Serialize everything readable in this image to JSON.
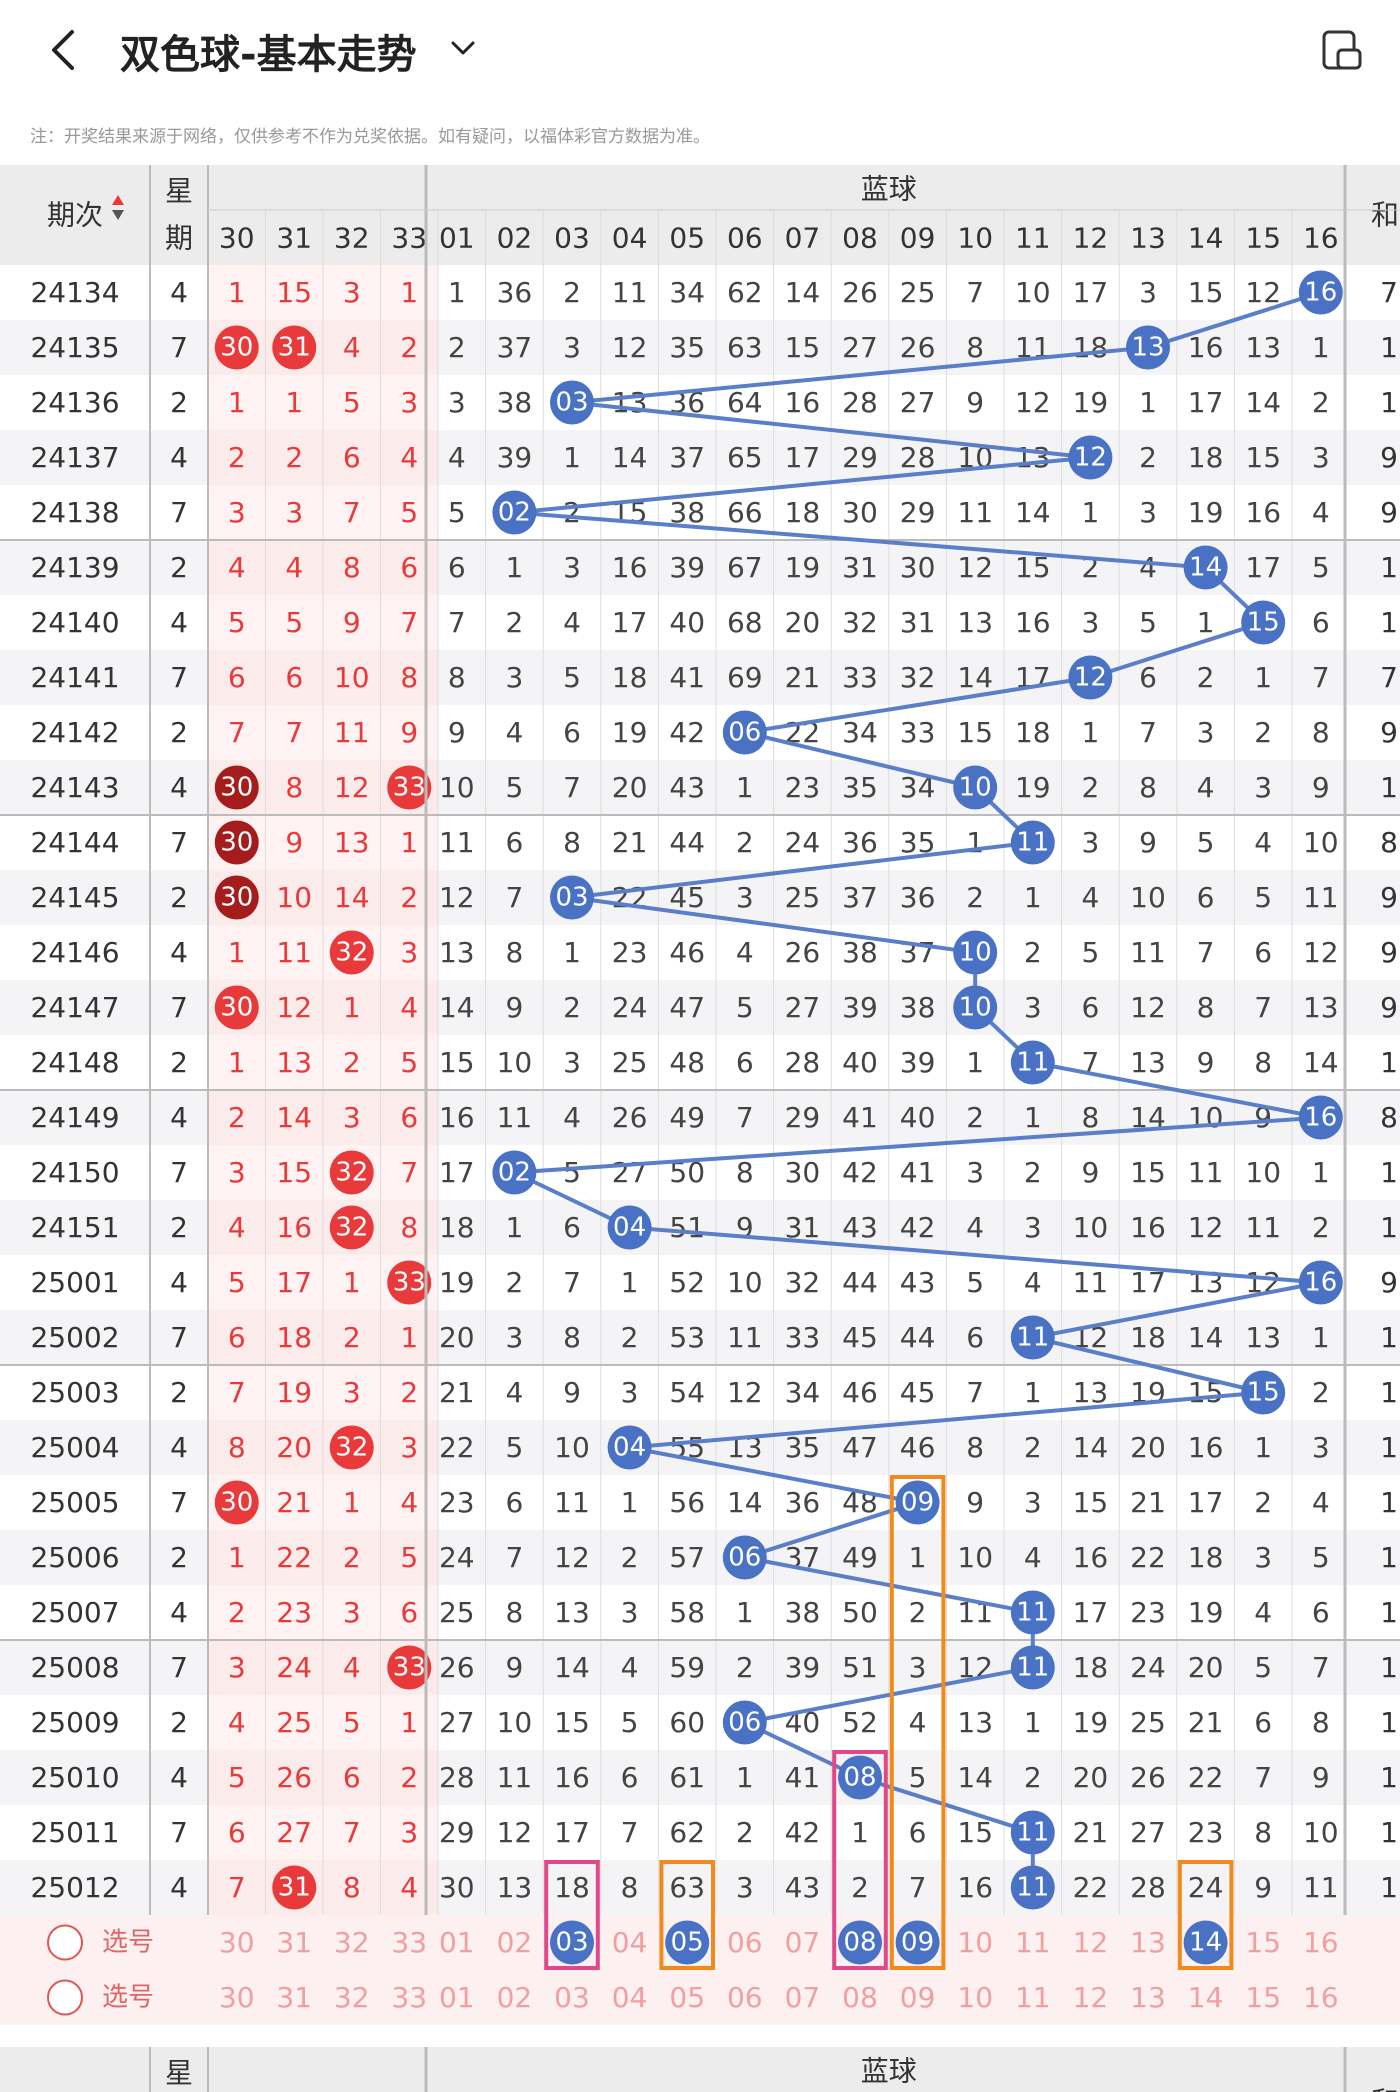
{
  "header": {
    "title": "双色球-基本走势",
    "back_icon": "back-chevron-icon",
    "dropdown_icon": "chevron-down-icon",
    "right_icon": "screen-rotate-icon"
  },
  "note": "注：开奖结果来源于网络，仅供参考不作为兑奖依据。如有疑问，以福体彩官方数据为准。",
  "table": {
    "col_period": "期次",
    "col_week_top": "星",
    "col_week_bottom": "期",
    "blue_group_label": "蓝球",
    "sum_label": "和",
    "red_cols": [
      "30",
      "31",
      "32",
      "33"
    ],
    "blue_cols": [
      "01",
      "02",
      "03",
      "04",
      "05",
      "06",
      "07",
      "08",
      "09",
      "10",
      "11",
      "12",
      "13",
      "14",
      "15",
      "16"
    ],
    "select_label": "选号",
    "footer_dash": "-",
    "rows": [
      {
        "p": "24134",
        "w": "4",
        "r": [
          "1",
          "15",
          "3",
          "1"
        ],
        "b": [
          "1",
          "36",
          "2",
          "11",
          "34",
          "62",
          "14",
          "26",
          "25",
          "7",
          "10",
          "17",
          "3",
          "15",
          "12",
          "16"
        ],
        "hit": 16,
        "rh": []
      },
      {
        "p": "24135",
        "w": "7",
        "r": [
          "30",
          "31",
          "4",
          "2"
        ],
        "b": [
          "2",
          "37",
          "3",
          "12",
          "35",
          "63",
          "15",
          "27",
          "26",
          "8",
          "11",
          "18",
          "13",
          "16",
          "13",
          "1"
        ],
        "hit": 13,
        "rh": [
          0,
          1
        ]
      },
      {
        "p": "24136",
        "w": "2",
        "r": [
          "1",
          "1",
          "5",
          "3"
        ],
        "b": [
          "3",
          "38",
          "03",
          "13",
          "36",
          "64",
          "16",
          "28",
          "27",
          "9",
          "12",
          "19",
          "1",
          "17",
          "14",
          "2"
        ],
        "hit": 3,
        "rh": []
      },
      {
        "p": "24137",
        "w": "4",
        "r": [
          "2",
          "2",
          "6",
          "4"
        ],
        "b": [
          "4",
          "39",
          "1",
          "14",
          "37",
          "65",
          "17",
          "29",
          "28",
          "10",
          "13",
          "12",
          "2",
          "18",
          "15",
          "3"
        ],
        "hit": 12,
        "rh": []
      },
      {
        "p": "24138",
        "w": "7",
        "r": [
          "3",
          "3",
          "7",
          "5"
        ],
        "b": [
          "5",
          "02",
          "2",
          "15",
          "38",
          "66",
          "18",
          "30",
          "29",
          "11",
          "14",
          "1",
          "3",
          "19",
          "16",
          "4"
        ],
        "hit": 2,
        "rh": []
      },
      {
        "p": "24139",
        "w": "2",
        "r": [
          "4",
          "4",
          "8",
          "6"
        ],
        "b": [
          "6",
          "1",
          "3",
          "16",
          "39",
          "67",
          "19",
          "31",
          "30",
          "12",
          "15",
          "2",
          "4",
          "14",
          "17",
          "5"
        ],
        "hit": 14,
        "rh": []
      },
      {
        "p": "24140",
        "w": "4",
        "r": [
          "5",
          "5",
          "9",
          "7"
        ],
        "b": [
          "7",
          "2",
          "4",
          "17",
          "40",
          "68",
          "20",
          "32",
          "31",
          "13",
          "16",
          "3",
          "5",
          "1",
          "15",
          "6"
        ],
        "hit": 15,
        "rh": []
      },
      {
        "p": "24141",
        "w": "7",
        "r": [
          "6",
          "6",
          "10",
          "8"
        ],
        "b": [
          "8",
          "3",
          "5",
          "18",
          "41",
          "69",
          "21",
          "33",
          "32",
          "14",
          "17",
          "12",
          "6",
          "2",
          "1",
          "7"
        ],
        "hit": 12,
        "rh": []
      },
      {
        "p": "24142",
        "w": "2",
        "r": [
          "7",
          "7",
          "11",
          "9"
        ],
        "b": [
          "9",
          "4",
          "6",
          "19",
          "42",
          "06",
          "22",
          "34",
          "33",
          "15",
          "18",
          "1",
          "7",
          "3",
          "2",
          "8"
        ],
        "hit": 6,
        "rh": []
      },
      {
        "p": "24143",
        "w": "4",
        "r": [
          "30",
          "8",
          "12",
          "33"
        ],
        "b": [
          "10",
          "5",
          "7",
          "20",
          "43",
          "1",
          "23",
          "35",
          "34",
          "10",
          "19",
          "2",
          "8",
          "4",
          "3",
          "9"
        ],
        "hit": 10,
        "rh": [
          0,
          3
        ],
        "dark": [
          0
        ]
      },
      {
        "p": "24144",
        "w": "7",
        "r": [
          "30",
          "9",
          "13",
          "1"
        ],
        "b": [
          "11",
          "6",
          "8",
          "21",
          "44",
          "2",
          "24",
          "36",
          "35",
          "1",
          "11",
          "3",
          "9",
          "5",
          "4",
          "10"
        ],
        "hit": 11,
        "rh": [
          0
        ],
        "dark": [
          0
        ]
      },
      {
        "p": "24145",
        "w": "2",
        "r": [
          "30",
          "10",
          "14",
          "2"
        ],
        "b": [
          "12",
          "7",
          "03",
          "22",
          "45",
          "3",
          "25",
          "37",
          "36",
          "2",
          "1",
          "4",
          "10",
          "6",
          "5",
          "11"
        ],
        "hit": 3,
        "rh": [
          0
        ],
        "dark": [
          0
        ]
      },
      {
        "p": "24146",
        "w": "4",
        "r": [
          "1",
          "11",
          "32",
          "3"
        ],
        "b": [
          "13",
          "8",
          "1",
          "23",
          "46",
          "4",
          "26",
          "38",
          "37",
          "10",
          "2",
          "5",
          "11",
          "7",
          "6",
          "12"
        ],
        "hit": 10,
        "rh": [
          2
        ]
      },
      {
        "p": "24147",
        "w": "7",
        "r": [
          "30",
          "12",
          "1",
          "4"
        ],
        "b": [
          "14",
          "9",
          "2",
          "24",
          "47",
          "5",
          "27",
          "39",
          "38",
          "10",
          "3",
          "6",
          "12",
          "8",
          "7",
          "13"
        ],
        "hit": 10,
        "rh": [
          0
        ]
      },
      {
        "p": "24148",
        "w": "2",
        "r": [
          "1",
          "13",
          "2",
          "5"
        ],
        "b": [
          "15",
          "10",
          "3",
          "25",
          "48",
          "6",
          "28",
          "40",
          "39",
          "1",
          "11",
          "7",
          "13",
          "9",
          "8",
          "14"
        ],
        "hit": 11,
        "rh": []
      },
      {
        "p": "24149",
        "w": "4",
        "r": [
          "2",
          "14",
          "3",
          "6"
        ],
        "b": [
          "16",
          "11",
          "4",
          "26",
          "49",
          "7",
          "29",
          "41",
          "40",
          "2",
          "1",
          "8",
          "14",
          "10",
          "9",
          "16"
        ],
        "hit": 16,
        "rh": []
      },
      {
        "p": "24150",
        "w": "7",
        "r": [
          "3",
          "15",
          "32",
          "7"
        ],
        "b": [
          "17",
          "02",
          "5",
          "27",
          "50",
          "8",
          "30",
          "42",
          "41",
          "3",
          "2",
          "9",
          "15",
          "11",
          "10",
          "1"
        ],
        "hit": 2,
        "rh": [
          2
        ]
      },
      {
        "p": "24151",
        "w": "2",
        "r": [
          "4",
          "16",
          "32",
          "8"
        ],
        "b": [
          "18",
          "1",
          "6",
          "04",
          "51",
          "9",
          "31",
          "43",
          "42",
          "4",
          "3",
          "10",
          "16",
          "12",
          "11",
          "2"
        ],
        "hit": 4,
        "rh": [
          2
        ]
      },
      {
        "p": "25001",
        "w": "4",
        "r": [
          "5",
          "17",
          "1",
          "33"
        ],
        "b": [
          "19",
          "2",
          "7",
          "1",
          "52",
          "10",
          "32",
          "44",
          "43",
          "5",
          "4",
          "11",
          "17",
          "13",
          "12",
          "16"
        ],
        "hit": 16,
        "rh": [
          3
        ]
      },
      {
        "p": "25002",
        "w": "7",
        "r": [
          "6",
          "18",
          "2",
          "1"
        ],
        "b": [
          "20",
          "3",
          "8",
          "2",
          "53",
          "11",
          "33",
          "45",
          "44",
          "6",
          "11",
          "12",
          "18",
          "14",
          "13",
          "1"
        ],
        "hit": 11,
        "rh": []
      },
      {
        "p": "25003",
        "w": "2",
        "r": [
          "7",
          "19",
          "3",
          "2"
        ],
        "b": [
          "21",
          "4",
          "9",
          "3",
          "54",
          "12",
          "34",
          "46",
          "45",
          "7",
          "1",
          "13",
          "19",
          "15",
          "15",
          "2"
        ],
        "hit": 15,
        "rh": []
      },
      {
        "p": "25004",
        "w": "4",
        "r": [
          "8",
          "20",
          "32",
          "3"
        ],
        "b": [
          "22",
          "5",
          "10",
          "04",
          "55",
          "13",
          "35",
          "47",
          "46",
          "8",
          "2",
          "14",
          "20",
          "16",
          "1",
          "3"
        ],
        "hit": 4,
        "rh": [
          2
        ]
      },
      {
        "p": "25005",
        "w": "7",
        "r": [
          "30",
          "21",
          "1",
          "4"
        ],
        "b": [
          "23",
          "6",
          "11",
          "1",
          "56",
          "14",
          "36",
          "48",
          "09",
          "9",
          "3",
          "15",
          "21",
          "17",
          "2",
          "4"
        ],
        "hit": 9,
        "rh": [
          0
        ]
      },
      {
        "p": "25006",
        "w": "2",
        "r": [
          "1",
          "22",
          "2",
          "5"
        ],
        "b": [
          "24",
          "7",
          "12",
          "2",
          "57",
          "06",
          "37",
          "49",
          "1",
          "10",
          "4",
          "16",
          "22",
          "18",
          "3",
          "5"
        ],
        "hit": 6,
        "rh": []
      },
      {
        "p": "25007",
        "w": "4",
        "r": [
          "2",
          "23",
          "3",
          "6"
        ],
        "b": [
          "25",
          "8",
          "13",
          "3",
          "58",
          "1",
          "38",
          "50",
          "2",
          "11",
          "11",
          "17",
          "23",
          "19",
          "4",
          "6"
        ],
        "hit": 11,
        "rh": []
      },
      {
        "p": "25008",
        "w": "7",
        "r": [
          "3",
          "24",
          "4",
          "33"
        ],
        "b": [
          "26",
          "9",
          "14",
          "4",
          "59",
          "2",
          "39",
          "51",
          "3",
          "12",
          "11",
          "18",
          "24",
          "20",
          "5",
          "7"
        ],
        "hit": 11,
        "rh": [
          3
        ]
      },
      {
        "p": "25009",
        "w": "2",
        "r": [
          "4",
          "25",
          "5",
          "1"
        ],
        "b": [
          "27",
          "10",
          "15",
          "5",
          "60",
          "06",
          "40",
          "52",
          "4",
          "13",
          "1",
          "19",
          "25",
          "21",
          "6",
          "8"
        ],
        "hit": 6,
        "rh": []
      },
      {
        "p": "25010",
        "w": "4",
        "r": [
          "5",
          "26",
          "6",
          "2"
        ],
        "b": [
          "28",
          "11",
          "16",
          "6",
          "61",
          "1",
          "41",
          "08",
          "5",
          "14",
          "2",
          "20",
          "26",
          "22",
          "7",
          "9"
        ],
        "hit": 8,
        "rh": []
      },
      {
        "p": "25011",
        "w": "7",
        "r": [
          "6",
          "27",
          "7",
          "3"
        ],
        "b": [
          "29",
          "12",
          "17",
          "7",
          "62",
          "2",
          "42",
          "1",
          "6",
          "15",
          "11",
          "21",
          "27",
          "23",
          "8",
          "10"
        ],
        "hit": 11,
        "rh": []
      },
      {
        "p": "25012",
        "w": "4",
        "r": [
          "7",
          "31",
          "8",
          "4"
        ],
        "b": [
          "30",
          "13",
          "18",
          "8",
          "63",
          "3",
          "43",
          "2",
          "7",
          "16",
          "11",
          "22",
          "28",
          "24",
          "9",
          "11"
        ],
        "hit": 11,
        "rh": [
          1
        ]
      }
    ],
    "sum_partial": [
      "7",
      "1",
      "1",
      "9",
      "9",
      "1",
      "1",
      "7",
      "9",
      "1",
      "8",
      "9",
      "9",
      "9",
      "1",
      "8",
      "1",
      "1",
      "9",
      "1",
      "1",
      "1",
      "1",
      "1",
      "1",
      "1",
      "1",
      "1",
      "1",
      "1"
    ],
    "selected_blue": [
      "03",
      "05",
      "08",
      "09",
      "14"
    ]
  },
  "colors": {
    "red": "#e83a3a",
    "dark_red": "#a51c1c",
    "blue_ball": "#4a72c4",
    "line": "#5a7ec8",
    "orange": "#f08a1c",
    "pink": "#e0488a",
    "header_bg": "#ececec"
  }
}
